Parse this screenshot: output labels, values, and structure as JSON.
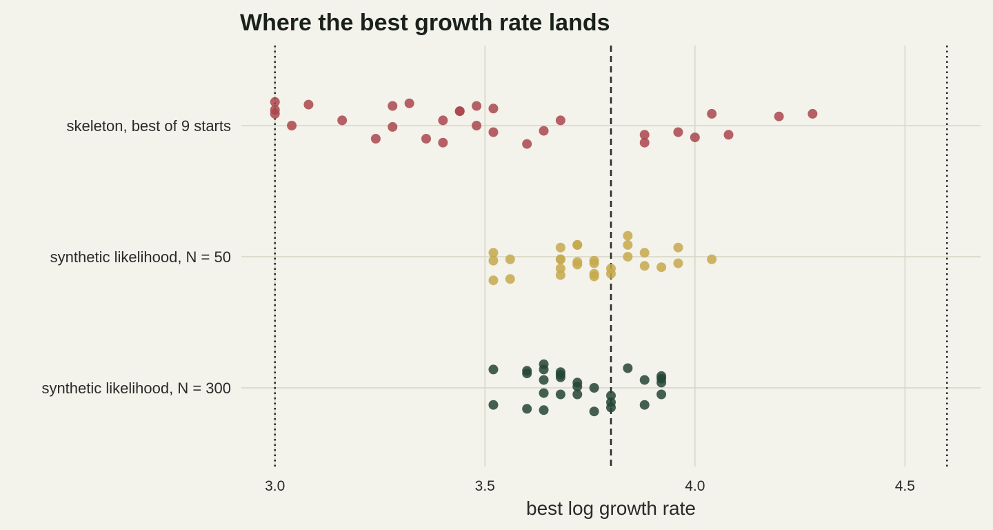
{
  "chart_data": {
    "type": "scatter",
    "title": "Where the best growth rate lands",
    "xlabel": "best log growth rate",
    "ylabel": "",
    "xlim": [
      2.92,
      4.68
    ],
    "xticks": [
      3.0,
      3.5,
      4.0,
      4.5
    ],
    "xtick_labels": [
      "3.0",
      "3.5",
      "4.0",
      "4.5"
    ],
    "grid": true,
    "legend": "none",
    "categories": [
      "skeleton, best of 9 starts",
      "synthetic likelihood, N = 50",
      "synthetic likelihood, N = 300"
    ],
    "reference_lines": [
      {
        "x": 3.0,
        "style": "dotted"
      },
      {
        "x": 3.8,
        "style": "dashed"
      },
      {
        "x": 4.6,
        "style": "dotted"
      }
    ],
    "series": [
      {
        "category": "skeleton, best of 9 starts",
        "color": "#a9474c",
        "points": [
          [
            3.0,
            0.18
          ],
          [
            3.0,
            0.12
          ],
          [
            3.0,
            0.09
          ],
          [
            3.04,
            0.0
          ],
          [
            3.08,
            0.16
          ],
          [
            3.16,
            0.04
          ],
          [
            3.24,
            -0.1
          ],
          [
            3.28,
            0.15
          ],
          [
            3.28,
            -0.01
          ],
          [
            3.32,
            0.17
          ],
          [
            3.36,
            -0.1
          ],
          [
            3.4,
            0.04
          ],
          [
            3.4,
            -0.13
          ],
          [
            3.44,
            0.11
          ],
          [
            3.44,
            0.11
          ],
          [
            3.48,
            0.15
          ],
          [
            3.48,
            0.0
          ],
          [
            3.52,
            0.13
          ],
          [
            3.52,
            -0.05
          ],
          [
            3.6,
            -0.14
          ],
          [
            3.64,
            -0.04
          ],
          [
            3.68,
            0.04
          ],
          [
            3.88,
            -0.07
          ],
          [
            3.88,
            -0.13
          ],
          [
            3.96,
            -0.05
          ],
          [
            4.0,
            -0.09
          ],
          [
            4.04,
            0.09
          ],
          [
            4.08,
            -0.07
          ],
          [
            4.2,
            0.07
          ],
          [
            4.28,
            0.09
          ]
        ]
      },
      {
        "category": "synthetic likelihood, N = 50",
        "color": "#c5a94c",
        "points": [
          [
            3.52,
            0.03
          ],
          [
            3.52,
            -0.03
          ],
          [
            3.52,
            -0.18
          ],
          [
            3.56,
            -0.02
          ],
          [
            3.56,
            -0.17
          ],
          [
            3.68,
            0.07
          ],
          [
            3.68,
            -0.02
          ],
          [
            3.68,
            -0.02
          ],
          [
            3.68,
            -0.09
          ],
          [
            3.68,
            -0.14
          ],
          [
            3.72,
            0.09
          ],
          [
            3.72,
            0.09
          ],
          [
            3.72,
            -0.04
          ],
          [
            3.72,
            -0.06
          ],
          [
            3.76,
            -0.03
          ],
          [
            3.76,
            -0.05
          ],
          [
            3.76,
            -0.13
          ],
          [
            3.76,
            -0.15
          ],
          [
            3.8,
            -0.09
          ],
          [
            3.8,
            -0.13
          ],
          [
            3.84,
            0.16
          ],
          [
            3.84,
            0.09
          ],
          [
            3.84,
            0.0
          ],
          [
            3.88,
            0.03
          ],
          [
            3.88,
            -0.07
          ],
          [
            3.92,
            -0.08
          ],
          [
            3.96,
            0.07
          ],
          [
            3.96,
            -0.05
          ],
          [
            4.04,
            -0.02
          ]
        ]
      },
      {
        "category": "synthetic likelihood, N = 300",
        "color": "#254535",
        "points": [
          [
            3.52,
            0.14
          ],
          [
            3.52,
            -0.13
          ],
          [
            3.6,
            0.13
          ],
          [
            3.6,
            0.11
          ],
          [
            3.6,
            -0.16
          ],
          [
            3.64,
            0.18
          ],
          [
            3.64,
            0.14
          ],
          [
            3.64,
            0.06
          ],
          [
            3.64,
            -0.04
          ],
          [
            3.64,
            -0.17
          ],
          [
            3.68,
            0.12
          ],
          [
            3.68,
            0.1
          ],
          [
            3.68,
            0.08
          ],
          [
            3.68,
            -0.05
          ],
          [
            3.72,
            0.04
          ],
          [
            3.72,
            0.01
          ],
          [
            3.72,
            -0.05
          ],
          [
            3.76,
            0.0
          ],
          [
            3.76,
            -0.18
          ],
          [
            3.8,
            -0.06
          ],
          [
            3.8,
            -0.11
          ],
          [
            3.8,
            -0.15
          ],
          [
            3.84,
            0.15
          ],
          [
            3.88,
            0.06
          ],
          [
            3.88,
            -0.13
          ],
          [
            3.92,
            0.09
          ],
          [
            3.92,
            0.07
          ],
          [
            3.92,
            0.04
          ],
          [
            3.92,
            -0.05
          ]
        ]
      }
    ]
  }
}
